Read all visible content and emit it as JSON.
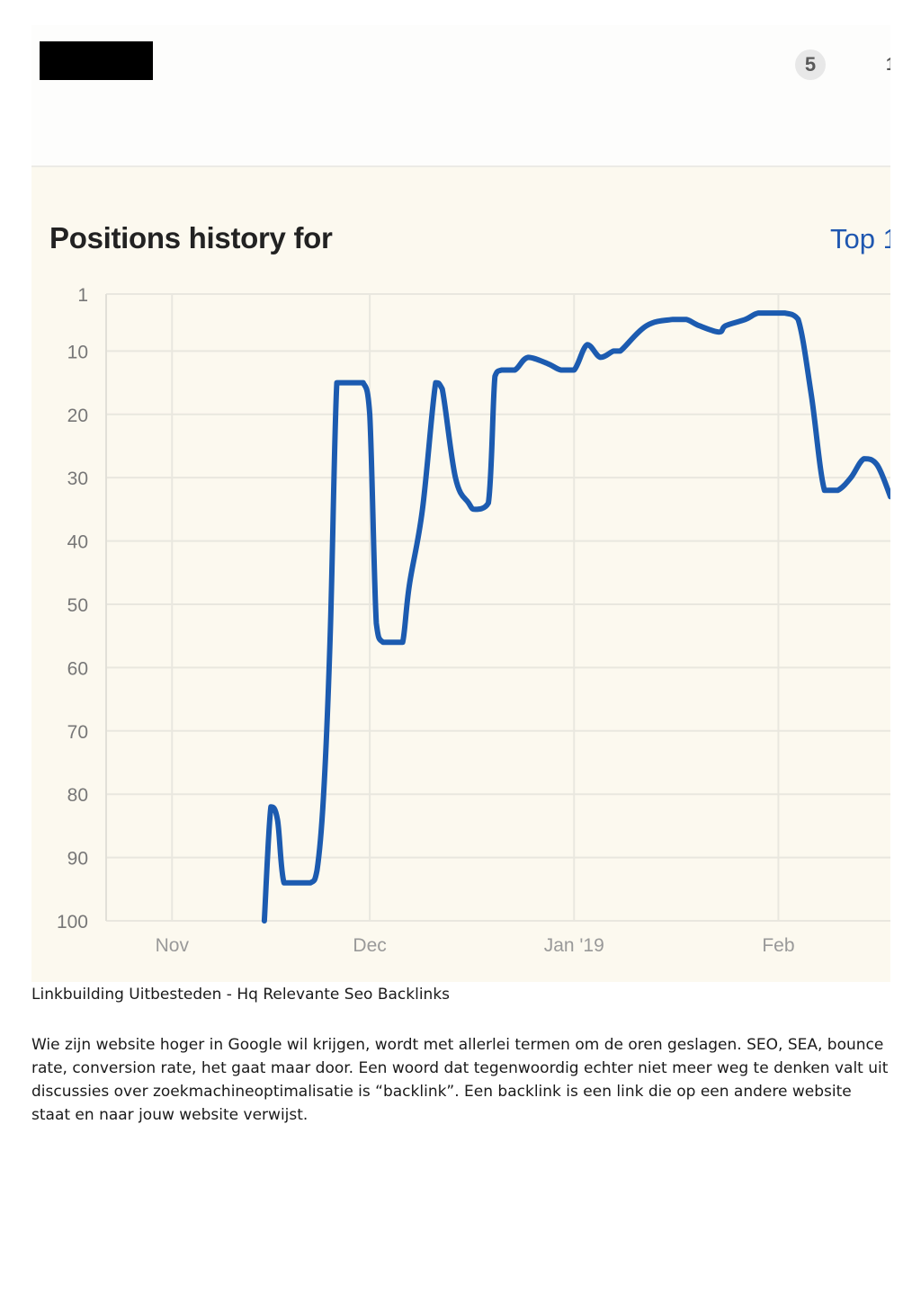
{
  "header": {
    "badge_label": "5",
    "clipped_label": "1"
  },
  "chart": {
    "title": "Positions history for",
    "top_link": "Top 1"
  },
  "chart_data": {
    "type": "line",
    "title": "Positions history for",
    "xlabel": "",
    "ylabel": "",
    "y_inverted": true,
    "ylim": [
      1,
      100
    ],
    "y_ticks": [
      1,
      10,
      20,
      30,
      40,
      50,
      60,
      70,
      80,
      90,
      100
    ],
    "x_ticks": [
      {
        "label": "Nov",
        "date": "2018-11-01"
      },
      {
        "label": "Dec",
        "date": "2018-12-01"
      },
      {
        "label": "Jan '19",
        "date": "2019-01-01"
      },
      {
        "label": "Feb",
        "date": "2019-02-01"
      }
    ],
    "xlim": [
      "2018-10-22",
      "2019-02-18"
    ],
    "grid": true,
    "series": [
      {
        "color": "#1c5bb0",
        "x": [
          "2018-11-15",
          "2018-11-16",
          "2018-11-17",
          "2018-11-18",
          "2018-11-20",
          "2018-11-22",
          "2018-11-23",
          "2018-11-24",
          "2018-11-25",
          "2018-11-26",
          "2018-11-27",
          "2018-11-29",
          "2018-11-30",
          "2018-12-01",
          "2018-12-02",
          "2018-12-03",
          "2018-12-05",
          "2018-12-06",
          "2018-12-07",
          "2018-12-09",
          "2018-12-11",
          "2018-12-12",
          "2018-12-14",
          "2018-12-16",
          "2018-12-17",
          "2018-12-19",
          "2018-12-20",
          "2018-12-21",
          "2018-12-23",
          "2018-12-25",
          "2018-12-28",
          "2018-12-30",
          "2019-01-01",
          "2019-01-03",
          "2019-01-05",
          "2019-01-07",
          "2019-01-08",
          "2019-01-12",
          "2019-01-16",
          "2019-01-18",
          "2019-01-20",
          "2019-01-23",
          "2019-01-24",
          "2019-01-27",
          "2019-01-29",
          "2019-02-01",
          "2019-02-02",
          "2019-02-04",
          "2019-02-06",
          "2019-02-08",
          "2019-02-10",
          "2019-02-12",
          "2019-02-14",
          "2019-02-16",
          "2019-02-18"
        ],
        "y": [
          100,
          82,
          84,
          94,
          94,
          94,
          92,
          80,
          55,
          15,
          15,
          15,
          15,
          20,
          53,
          56,
          56,
          56,
          47,
          35,
          15,
          16,
          30,
          34,
          35,
          34,
          14,
          13,
          13,
          11,
          12,
          13,
          13,
          9,
          11,
          10,
          10,
          6,
          5,
          5,
          6,
          7,
          6,
          5,
          4,
          4,
          4,
          5,
          17,
          32,
          32,
          30,
          27,
          28,
          33
        ]
      }
    ]
  },
  "caption": "Linkbuilding Uitbesteden - Hq Relevante Seo Backlinks",
  "paragraph": "Wie zijn website hoger in Google wil krijgen, wordt met allerlei termen om de oren geslagen. SEO, SEA, bounce rate, conversion rate, het gaat maar door. Een woord dat tegenwoordig echter niet meer weg te denken valt uit discussies over zoekmachineoptimalisatie is “backlink”. Een backlink is een link die op een andere website staat en naar jouw website verwijst."
}
